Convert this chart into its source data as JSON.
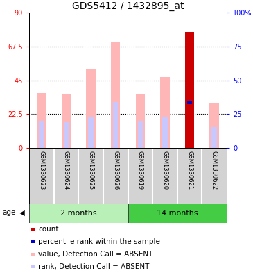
{
  "title": "GDS5412 / 1432895_at",
  "samples": [
    "GSM1330623",
    "GSM1330624",
    "GSM1330625",
    "GSM1330626",
    "GSM1330619",
    "GSM1330620",
    "GSM1330621",
    "GSM1330622"
  ],
  "group_labels": [
    "2 months",
    "14 months"
  ],
  "group_split": 4,
  "value_absent": [
    36.5,
    36.0,
    52.0,
    70.0,
    36.0,
    47.0,
    0,
    30.0
  ],
  "rank_absent": [
    18.0,
    17.0,
    21.0,
    30.5,
    18.0,
    20.5,
    0,
    14.0
  ],
  "count_value": [
    0,
    0,
    0,
    0,
    0,
    0,
    77.0,
    0
  ],
  "percentile_value": [
    0,
    0,
    0,
    0,
    0,
    0,
    30.5,
    0
  ],
  "left_ylim": [
    0,
    90
  ],
  "right_ylim": [
    0,
    100
  ],
  "left_yticks": [
    0,
    22.5,
    45,
    67.5,
    90
  ],
  "left_yticklabels": [
    "0",
    "22.5",
    "45",
    "67.5",
    "90"
  ],
  "right_yticks": [
    0,
    25,
    50,
    75,
    100
  ],
  "right_yticklabels": [
    "0",
    "25",
    "50",
    "75",
    "100%"
  ],
  "color_value_absent": "#ffb6b6",
  "color_rank_absent": "#c8c8ff",
  "color_count": "#cc0000",
  "color_percentile": "#0000cc",
  "legend_items": [
    {
      "color": "#cc0000",
      "label": "count"
    },
    {
      "color": "#0000cc",
      "label": "percentile rank within the sample"
    },
    {
      "color": "#ffb6b6",
      "label": "value, Detection Call = ABSENT"
    },
    {
      "color": "#c8c8ff",
      "label": "rank, Detection Call = ABSENT"
    }
  ],
  "age_label": "age",
  "plot_bg": "#ffffff",
  "sample_area_color": "#d3d3d3",
  "group1_color": "#b8f0b8",
  "group2_color": "#44cc44",
  "title_fontsize": 10,
  "tick_fontsize": 7,
  "sample_fontsize": 6,
  "legend_fontsize": 7.5
}
